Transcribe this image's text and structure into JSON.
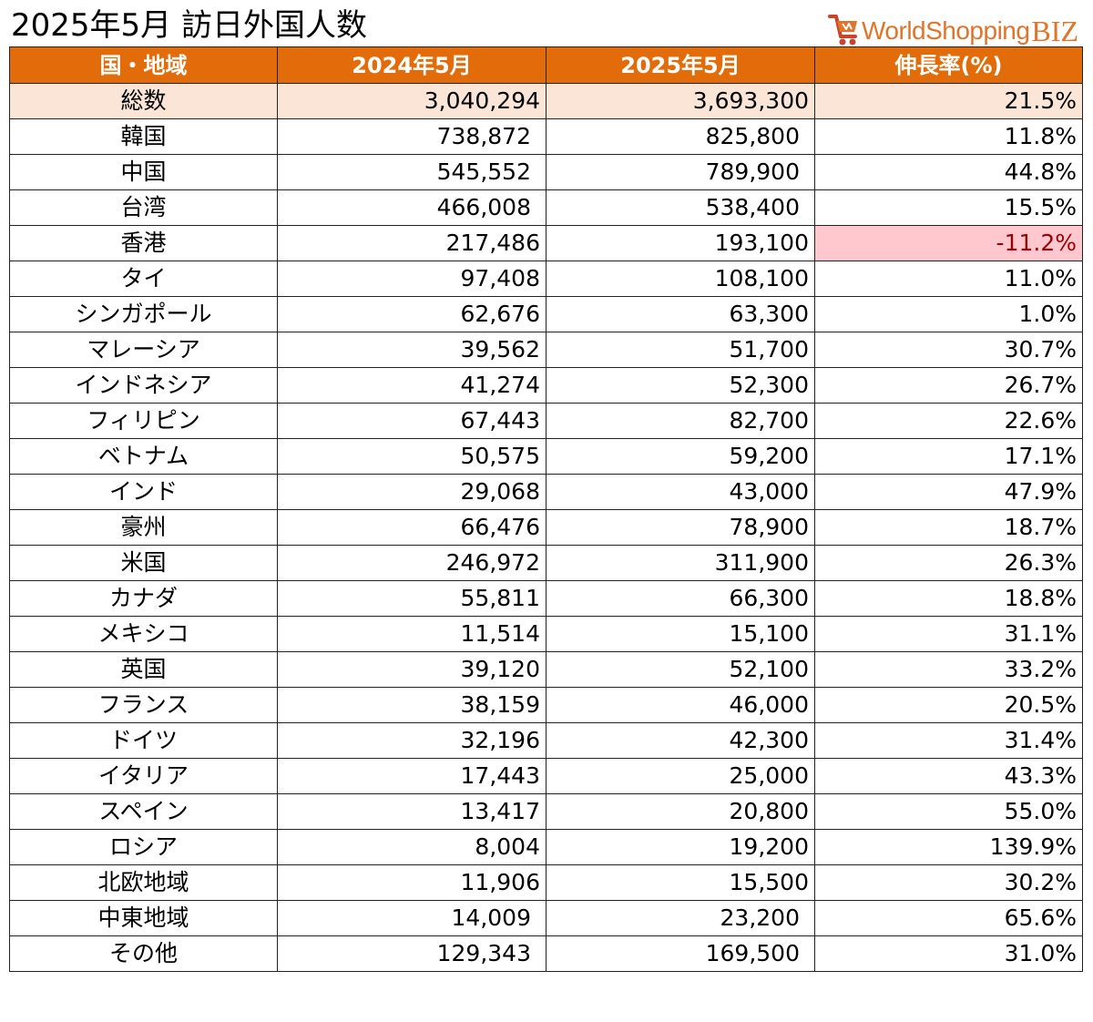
{
  "title": "2025年5月 訪日外国人数",
  "logo": {
    "main": "WorldShopping",
    "suffix": "BIZ"
  },
  "colors": {
    "header_bg": "#e36c0a",
    "header_text": "#ffffff",
    "total_row_bg": "#fbe5d6",
    "negative_bg": "#ffc7ce",
    "negative_text": "#9c0006",
    "logo": "#e0752a"
  },
  "table": {
    "headers": [
      "国・地域",
      "2024年5月",
      "2025年5月",
      "伸長率(%)"
    ],
    "rows": [
      {
        "name": "総数",
        "y2024": "3,040,294",
        "y2025": "3,693,300",
        "growth": "21.5%",
        "total": true
      },
      {
        "name": "韓国",
        "y2024": "738,872",
        "y2025": "825,800",
        "growth": "11.8%",
        "offset": true
      },
      {
        "name": "中国",
        "y2024": "545,552",
        "y2025": "789,900",
        "growth": "44.8%",
        "offset": true
      },
      {
        "name": "台湾",
        "y2024": "466,008",
        "y2025": "538,400",
        "growth": "15.5%",
        "offset": true
      },
      {
        "name": "香港",
        "y2024": "217,486",
        "y2025": "193,100",
        "growth": "-11.2%",
        "negative": true
      },
      {
        "name": "タイ",
        "y2024": "97,408",
        "y2025": "108,100",
        "growth": "11.0%"
      },
      {
        "name": "シンガポール",
        "y2024": "62,676",
        "y2025": "63,300",
        "growth": "1.0%"
      },
      {
        "name": "マレーシア",
        "y2024": "39,562",
        "y2025": "51,700",
        "growth": "30.7%"
      },
      {
        "name": "インドネシア",
        "y2024": "41,274",
        "y2025": "52,300",
        "growth": "26.7%"
      },
      {
        "name": "フィリピン",
        "y2024": "67,443",
        "y2025": "82,700",
        "growth": "22.6%"
      },
      {
        "name": "ベトナム",
        "y2024": "50,575",
        "y2025": "59,200",
        "growth": "17.1%"
      },
      {
        "name": "インド",
        "y2024": "29,068",
        "y2025": "43,000",
        "growth": "47.9%"
      },
      {
        "name": "豪州",
        "y2024": "66,476",
        "y2025": "78,900",
        "growth": "18.7%"
      },
      {
        "name": "米国",
        "y2024": "246,972",
        "y2025": "311,900",
        "growth": "26.3%"
      },
      {
        "name": "カナダ",
        "y2024": "55,811",
        "y2025": "66,300",
        "growth": "18.8%"
      },
      {
        "name": "メキシコ",
        "y2024": "11,514",
        "y2025": "15,100",
        "growth": "31.1%"
      },
      {
        "name": "英国",
        "y2024": "39,120",
        "y2025": "52,100",
        "growth": "33.2%"
      },
      {
        "name": "フランス",
        "y2024": "38,159",
        "y2025": "46,000",
        "growth": "20.5%"
      },
      {
        "name": "ドイツ",
        "y2024": "32,196",
        "y2025": "42,300",
        "growth": "31.4%"
      },
      {
        "name": "イタリア",
        "y2024": "17,443",
        "y2025": "25,000",
        "growth": "43.3%"
      },
      {
        "name": "スペイン",
        "y2024": "13,417",
        "y2025": "20,800",
        "growth": "55.0%"
      },
      {
        "name": "ロシア",
        "y2024": "8,004",
        "y2025": "19,200",
        "growth": "139.9%"
      },
      {
        "name": "北欧地域",
        "y2024": "11,906",
        "y2025": "15,500",
        "growth": "30.2%"
      },
      {
        "name": "中東地域",
        "y2024": "14,009",
        "y2025": "23,200",
        "growth": "65.6%",
        "offset": true
      },
      {
        "name": "その他",
        "y2024": "129,343",
        "y2025": "169,500",
        "growth": "31.0%",
        "offset": true
      }
    ]
  }
}
